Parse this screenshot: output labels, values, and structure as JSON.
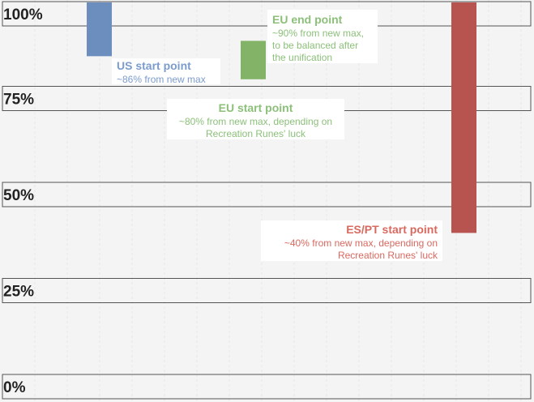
{
  "chart_data": {
    "type": "bar",
    "title": "",
    "xlabel": "",
    "ylabel": "",
    "ylim": [
      0,
      100
    ],
    "grid": true,
    "y_ticks": [
      "100%",
      "75%",
      "50%",
      "25%",
      "0%"
    ],
    "y_tick_values": [
      100,
      75,
      50,
      25,
      0
    ],
    "series": [
      {
        "key": "us",
        "range": [
          86,
          100
        ],
        "color": "#6c8ebf"
      },
      {
        "key": "eu",
        "range": [
          80,
          90
        ],
        "color": "#82b366"
      },
      {
        "key": "es",
        "range": [
          40,
          100
        ],
        "color": "#b85450"
      }
    ],
    "annotations": {
      "us": {
        "title": "US start point",
        "desc": "~86% from new max",
        "color": "#7b9ccc"
      },
      "eu_end": {
        "title": "EU end point",
        "desc": "~90% from new max,\nto be balanced after\nthe unification",
        "color": "#8cc07a"
      },
      "eu_start": {
        "title": "EU start point",
        "desc": "~80% from new max, depending on\nRecreation Runes' luck",
        "color": "#8cc07a"
      },
      "es": {
        "title": "ES/PT start point",
        "desc": "~40% from new max, depending on\nRecreation Runes' luck",
        "color": "#d9695f"
      }
    }
  }
}
